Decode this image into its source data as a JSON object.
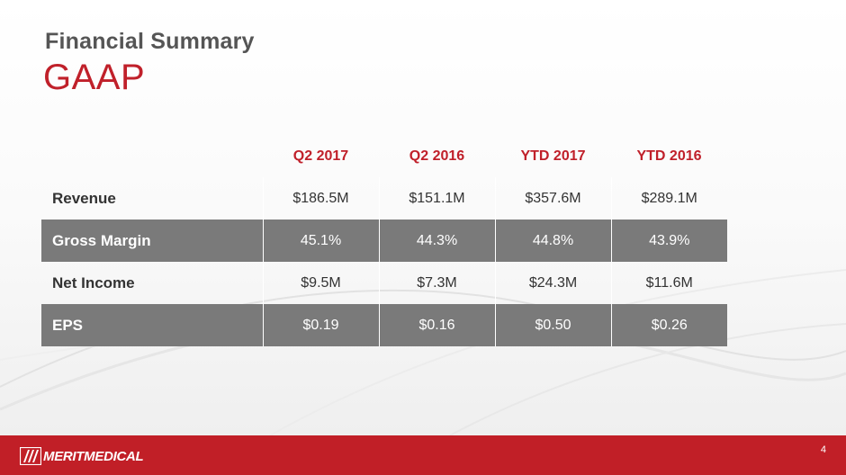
{
  "slide": {
    "title": "Financial Summary",
    "subtitle": "GAAP",
    "page_number": "4"
  },
  "table": {
    "headers": [
      "",
      "Q2 2017",
      "Q2 2016",
      "YTD 2017",
      "YTD 2016"
    ],
    "rows": [
      {
        "label": "Revenue",
        "values": [
          "$186.5M",
          "$151.1M",
          "$357.6M",
          "$289.1M"
        ],
        "style": "light"
      },
      {
        "label": "Gross Margin",
        "values": [
          "45.1%",
          "44.3%",
          "44.8%",
          "43.9%"
        ],
        "style": "dark"
      },
      {
        "label": "Net Income",
        "values": [
          "$9.5M",
          "$7.3M",
          "$24.3M",
          "$11.6M"
        ],
        "style": "light"
      },
      {
        "label": "EPS",
        "values": [
          "$0.19",
          "$0.16",
          "$0.50",
          "$0.26"
        ],
        "style": "dark"
      }
    ]
  },
  "footer": {
    "logo_text": "MERITMEDICAL",
    "logo_icon": "merit-medical-logo-icon"
  },
  "colors": {
    "accent_red": "#c0202a",
    "footer_red": "#c11f27",
    "title_gray": "#555555",
    "dark_row": "#7a7a7a"
  }
}
